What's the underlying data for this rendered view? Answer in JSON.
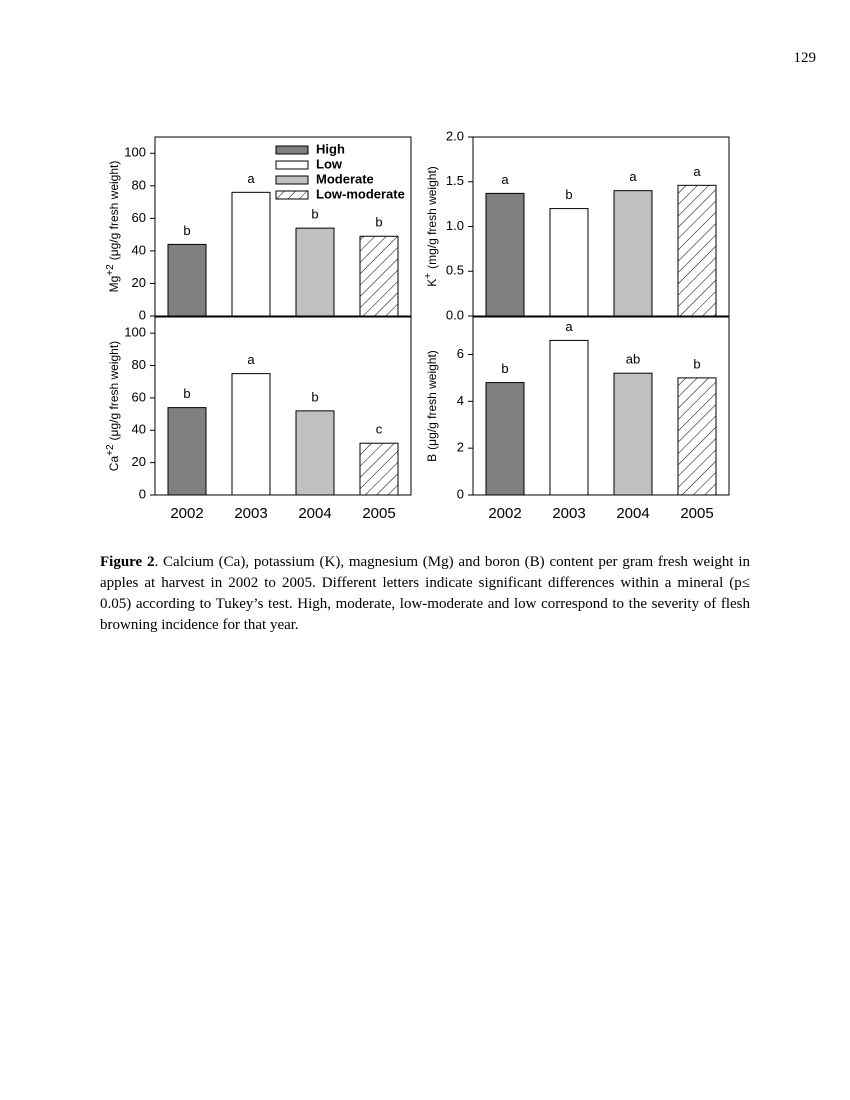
{
  "page_number": "129",
  "chart_data": [
    {
      "type": "bar",
      "ylabel": {
        "base": "Mg",
        "sup": "+2",
        "unit": "(μg/g fresh weight)"
      },
      "values": [
        44,
        76,
        54,
        49
      ],
      "annotations": [
        "b",
        "a",
        "b",
        "b"
      ],
      "colors": [
        "#808080",
        "#ffffff",
        "#c0c0c0",
        "hatch"
      ],
      "ylim": [
        0,
        110
      ],
      "yticks": [
        0,
        20,
        40,
        60,
        80,
        100
      ],
      "legend": [
        {
          "name": "High",
          "color": "#808080"
        },
        {
          "name": "Low",
          "color": "#ffffff"
        },
        {
          "name": "Moderate",
          "color": "#c0c0c0"
        },
        {
          "name": "Low-moderate",
          "color": "hatch"
        }
      ]
    },
    {
      "type": "bar",
      "ylabel": {
        "base": "K",
        "sup": "+",
        "unit": "(mg/g fresh weight)"
      },
      "values": [
        1.37,
        1.2,
        1.4,
        1.46
      ],
      "annotations": [
        "a",
        "b",
        "a",
        "a"
      ],
      "colors": [
        "#808080",
        "#ffffff",
        "#c0c0c0",
        "hatch"
      ],
      "ylim": [
        0,
        2.0
      ],
      "yticks": [
        {
          "value": 0,
          "label": "0.0"
        },
        {
          "value": 0.5,
          "label": "0.5"
        },
        {
          "value": 1,
          "label": "1.0"
        },
        {
          "value": 1.5,
          "label": "1.5"
        },
        {
          "value": 2,
          "label": "2.0"
        }
      ]
    },
    {
      "type": "bar",
      "ylabel": {
        "base": "Ca",
        "sup": "+2",
        "unit": "(μg/g fresh weight)"
      },
      "categories": [
        "2002",
        "2003",
        "2004",
        "2005"
      ],
      "values": [
        54,
        75,
        52,
        32
      ],
      "annotations": [
        "b",
        "a",
        "b",
        "c"
      ],
      "colors": [
        "#808080",
        "#ffffff",
        "#c0c0c0",
        "hatch"
      ],
      "ylim": [
        0,
        110
      ],
      "yticks": [
        0,
        20,
        40,
        60,
        80,
        100
      ]
    },
    {
      "type": "bar",
      "ylabel": {
        "base": "B",
        "unit": "(μg/g fresh weight)"
      },
      "categories": [
        "2002",
        "2003",
        "2004",
        "2005"
      ],
      "values": [
        4.8,
        6.6,
        5.2,
        5.0
      ],
      "annotations": [
        "b",
        "a",
        "ab",
        "b"
      ],
      "colors": [
        "#808080",
        "#ffffff",
        "#c0c0c0",
        "hatch"
      ],
      "ylim": [
        0,
        7.6
      ],
      "yticks": [
        0,
        2,
        4,
        6
      ]
    }
  ],
  "caption": {
    "label": "Figure 2",
    "text": ". Calcium (Ca), potassium (K), magnesium (Mg) and boron (B) content per gram fresh weight in apples at harvest in 2002 to 2005. Different letters indicate significant differences within a mineral (p≤ 0.05) according to Tukey’s test. High, moderate, low-moderate and low correspond to the severity of flesh browning incidence for that year."
  }
}
